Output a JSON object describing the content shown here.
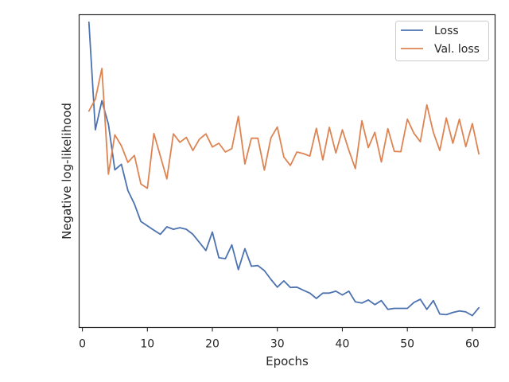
{
  "chart_data": {
    "type": "line",
    "title": "",
    "xlabel": "Epochs",
    "ylabel": "Negative log-likelihood",
    "xlim": [
      -0.5,
      63.5
    ],
    "ylim": [
      0,
      100
    ],
    "y_ticks_shown": false,
    "grid": false,
    "legend_placement": "top-right",
    "x_ticks": [
      0,
      10,
      20,
      30,
      40,
      50,
      60
    ],
    "x": [
      1,
      2,
      3,
      4,
      5,
      6,
      7,
      8,
      9,
      10,
      11,
      12,
      13,
      14,
      15,
      16,
      17,
      18,
      19,
      20,
      21,
      22,
      23,
      24,
      25,
      26,
      27,
      28,
      29,
      30,
      31,
      32,
      33,
      34,
      35,
      36,
      37,
      38,
      39,
      40,
      41,
      42,
      43,
      44,
      45,
      46,
      47,
      48,
      49,
      50,
      51,
      52,
      53,
      54,
      55,
      56,
      57,
      58,
      59,
      60,
      61
    ],
    "series": [
      {
        "name": "Loss",
        "color": "#4c72b0",
        "values": [
          97.6,
          63.2,
          72.5,
          65.0,
          50.4,
          52.2,
          43.8,
          39.5,
          33.9,
          32.5,
          31.1,
          29.8,
          32.2,
          31.4,
          31.9,
          31.4,
          29.8,
          27.2,
          24.6,
          30.5,
          22.3,
          22.0,
          26.4,
          18.5,
          25.2,
          19.6,
          19.8,
          18.2,
          15.4,
          12.9,
          14.9,
          12.8,
          12.9,
          11.9,
          11.0,
          9.3,
          11.0,
          11.0,
          11.6,
          10.4,
          11.6,
          8.2,
          7.8,
          8.8,
          7.3,
          8.6,
          5.8,
          6.1,
          6.1,
          6.1,
          8.0,
          9.0,
          5.8,
          8.6,
          4.3,
          4.1,
          4.8,
          5.3,
          5.0,
          3.8,
          6.3
        ]
      },
      {
        "name": "Val. loss",
        "color": "#dd8452",
        "values": [
          69.2,
          73.0,
          82.8,
          49.0,
          61.6,
          58.1,
          52.8,
          55.0,
          45.9,
          44.5,
          62.0,
          54.8,
          47.5,
          61.9,
          59.2,
          60.8,
          56.6,
          60.2,
          61.9,
          57.7,
          58.9,
          56.1,
          57.2,
          67.5,
          52.3,
          60.5,
          60.5,
          50.3,
          60.6,
          64.1,
          54.5,
          51.8,
          56.1,
          55.6,
          54.8,
          63.7,
          53.6,
          64.0,
          55.8,
          63.2,
          56.7,
          50.8,
          66.1,
          57.5,
          62.4,
          52.9,
          63.6,
          56.3,
          56.2,
          66.6,
          62.1,
          59.4,
          71.2,
          62.4,
          56.6,
          67.0,
          58.9,
          66.6,
          57.8,
          65.2,
          55.5
        ]
      }
    ]
  }
}
